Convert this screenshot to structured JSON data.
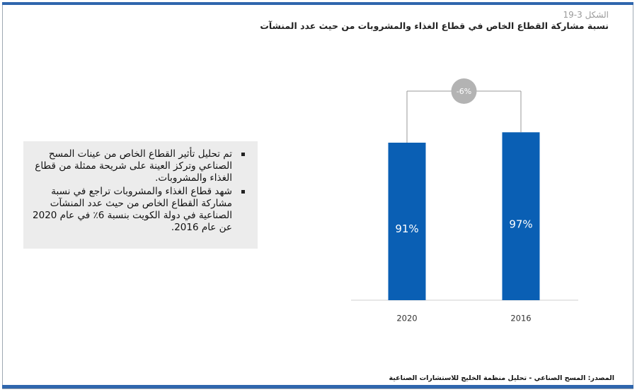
{
  "header": {
    "figure_number": "الشكل 3-19",
    "title": "نسبة مشاركة القطاع الخاص في قطاع الغذاء والمشروبات من حيث عدد المنشآت"
  },
  "notes": [
    "تم تحليل تأثير القطاع الخاص من عينات المسح الصناعي وتركز العينة على شريحة ممثلة من قطاع الغذاء والمشروبات.",
    "شهد قطاع الغذاء والمشروبات تراجع في نسبة مشاركة القطاع الخاص من حيث عدد المنشآت الصناعية في دولة الكويت بنسبة 6٪ في عام 2020 عن عام 2016."
  ],
  "chart_data": {
    "type": "bar",
    "categories": [
      "2020",
      "2016"
    ],
    "values": [
      91,
      97
    ],
    "value_labels": [
      "91%",
      "97%"
    ],
    "change_label": "-6%",
    "bar_color": "#0a5fb4",
    "badge_color": "#b3b3b3",
    "xlabel": "",
    "ylabel": ""
  },
  "source": "المصدر: المسح الصناعي - تحليل منظمة الخليج للاستشارات الصناعية"
}
